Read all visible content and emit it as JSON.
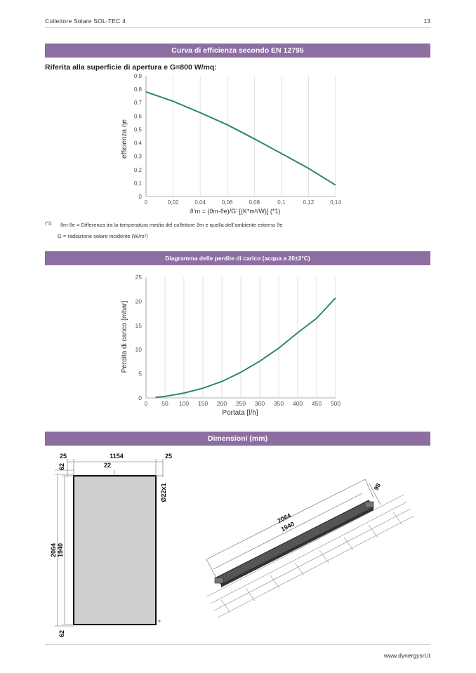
{
  "header": {
    "doc_title": "Collettore Solare SOL-TEC 4",
    "page_number": "13"
  },
  "section1": {
    "title": "Curva di efficienza secondo EN 12795",
    "subtitle": "Riferita alla superficie di apertura e G=800 W/mq:",
    "note_marker": "(*1)",
    "note_symbol": "ϑm-ϑe",
    "note_line1": " = Differenza tra la temperatura media del collettore ϑm e quella dell’ambiente esterno ϑe",
    "note_line2": "G = radiazione solare incidente (W/m²)"
  },
  "section2": {
    "title": "Diagramma delle perdite di carico (acqua a 20±2°C)"
  },
  "section3": {
    "title": "Dimensioni (mm)"
  },
  "chart_data": [
    {
      "type": "line",
      "title": "",
      "xlabel": "ϑ’m = (ϑm-ϑe)/G’ [(K*m²/W)] (*1)",
      "ylabel": "efficienza ηe",
      "xlim": [
        0,
        0.14
      ],
      "ylim": [
        0,
        0.9
      ],
      "x_ticks": [
        "0",
        "0,02",
        "0,04",
        "0,06",
        "0,08",
        "0,1",
        "0,12",
        "0,14"
      ],
      "y_ticks": [
        "0",
        "0,1",
        "0,2",
        "0,3",
        "0,4",
        "0,5",
        "0,6",
        "0,7",
        "0,8",
        "0,9"
      ],
      "grid": "vertical",
      "color": "#2e8b57",
      "x": [
        0,
        0.02,
        0.04,
        0.06,
        0.08,
        0.1,
        0.12,
        0.14
      ],
      "y": [
        0.78,
        0.71,
        0.625,
        0.535,
        0.43,
        0.32,
        0.21,
        0.085
      ]
    },
    {
      "type": "line",
      "title": "",
      "xlabel": "Portata [l/h]",
      "ylabel": "Perdita di carico [mbar]",
      "xlim": [
        0,
        500
      ],
      "ylim": [
        0,
        25
      ],
      "x_ticks": [
        "0",
        "50",
        "100",
        "150",
        "200",
        "250",
        "300",
        "350",
        "400",
        "450",
        "500"
      ],
      "y_ticks": [
        "0",
        "5",
        "10",
        "15",
        "20",
        "25"
      ],
      "grid": "vertical",
      "color": "#2e8b57",
      "x": [
        25,
        50,
        100,
        150,
        200,
        250,
        300,
        350,
        400,
        450,
        500
      ],
      "y": [
        0.1,
        0.3,
        1.0,
        2.0,
        3.4,
        5.3,
        7.6,
        10.3,
        13.5,
        16.5,
        20.7
      ]
    }
  ],
  "dimensions": {
    "front": {
      "margin_left": "25",
      "width": "1154",
      "margin_right": "25",
      "offset": "22",
      "top": "62",
      "bottom": "62",
      "height_outer": "2064",
      "height_inner": "1940",
      "pipe": "Ø22x1"
    },
    "iso": {
      "length_outer": "2064",
      "length_inner": "1940",
      "depth": "98"
    }
  },
  "footer": {
    "url": "www.dynergysrl.it"
  }
}
